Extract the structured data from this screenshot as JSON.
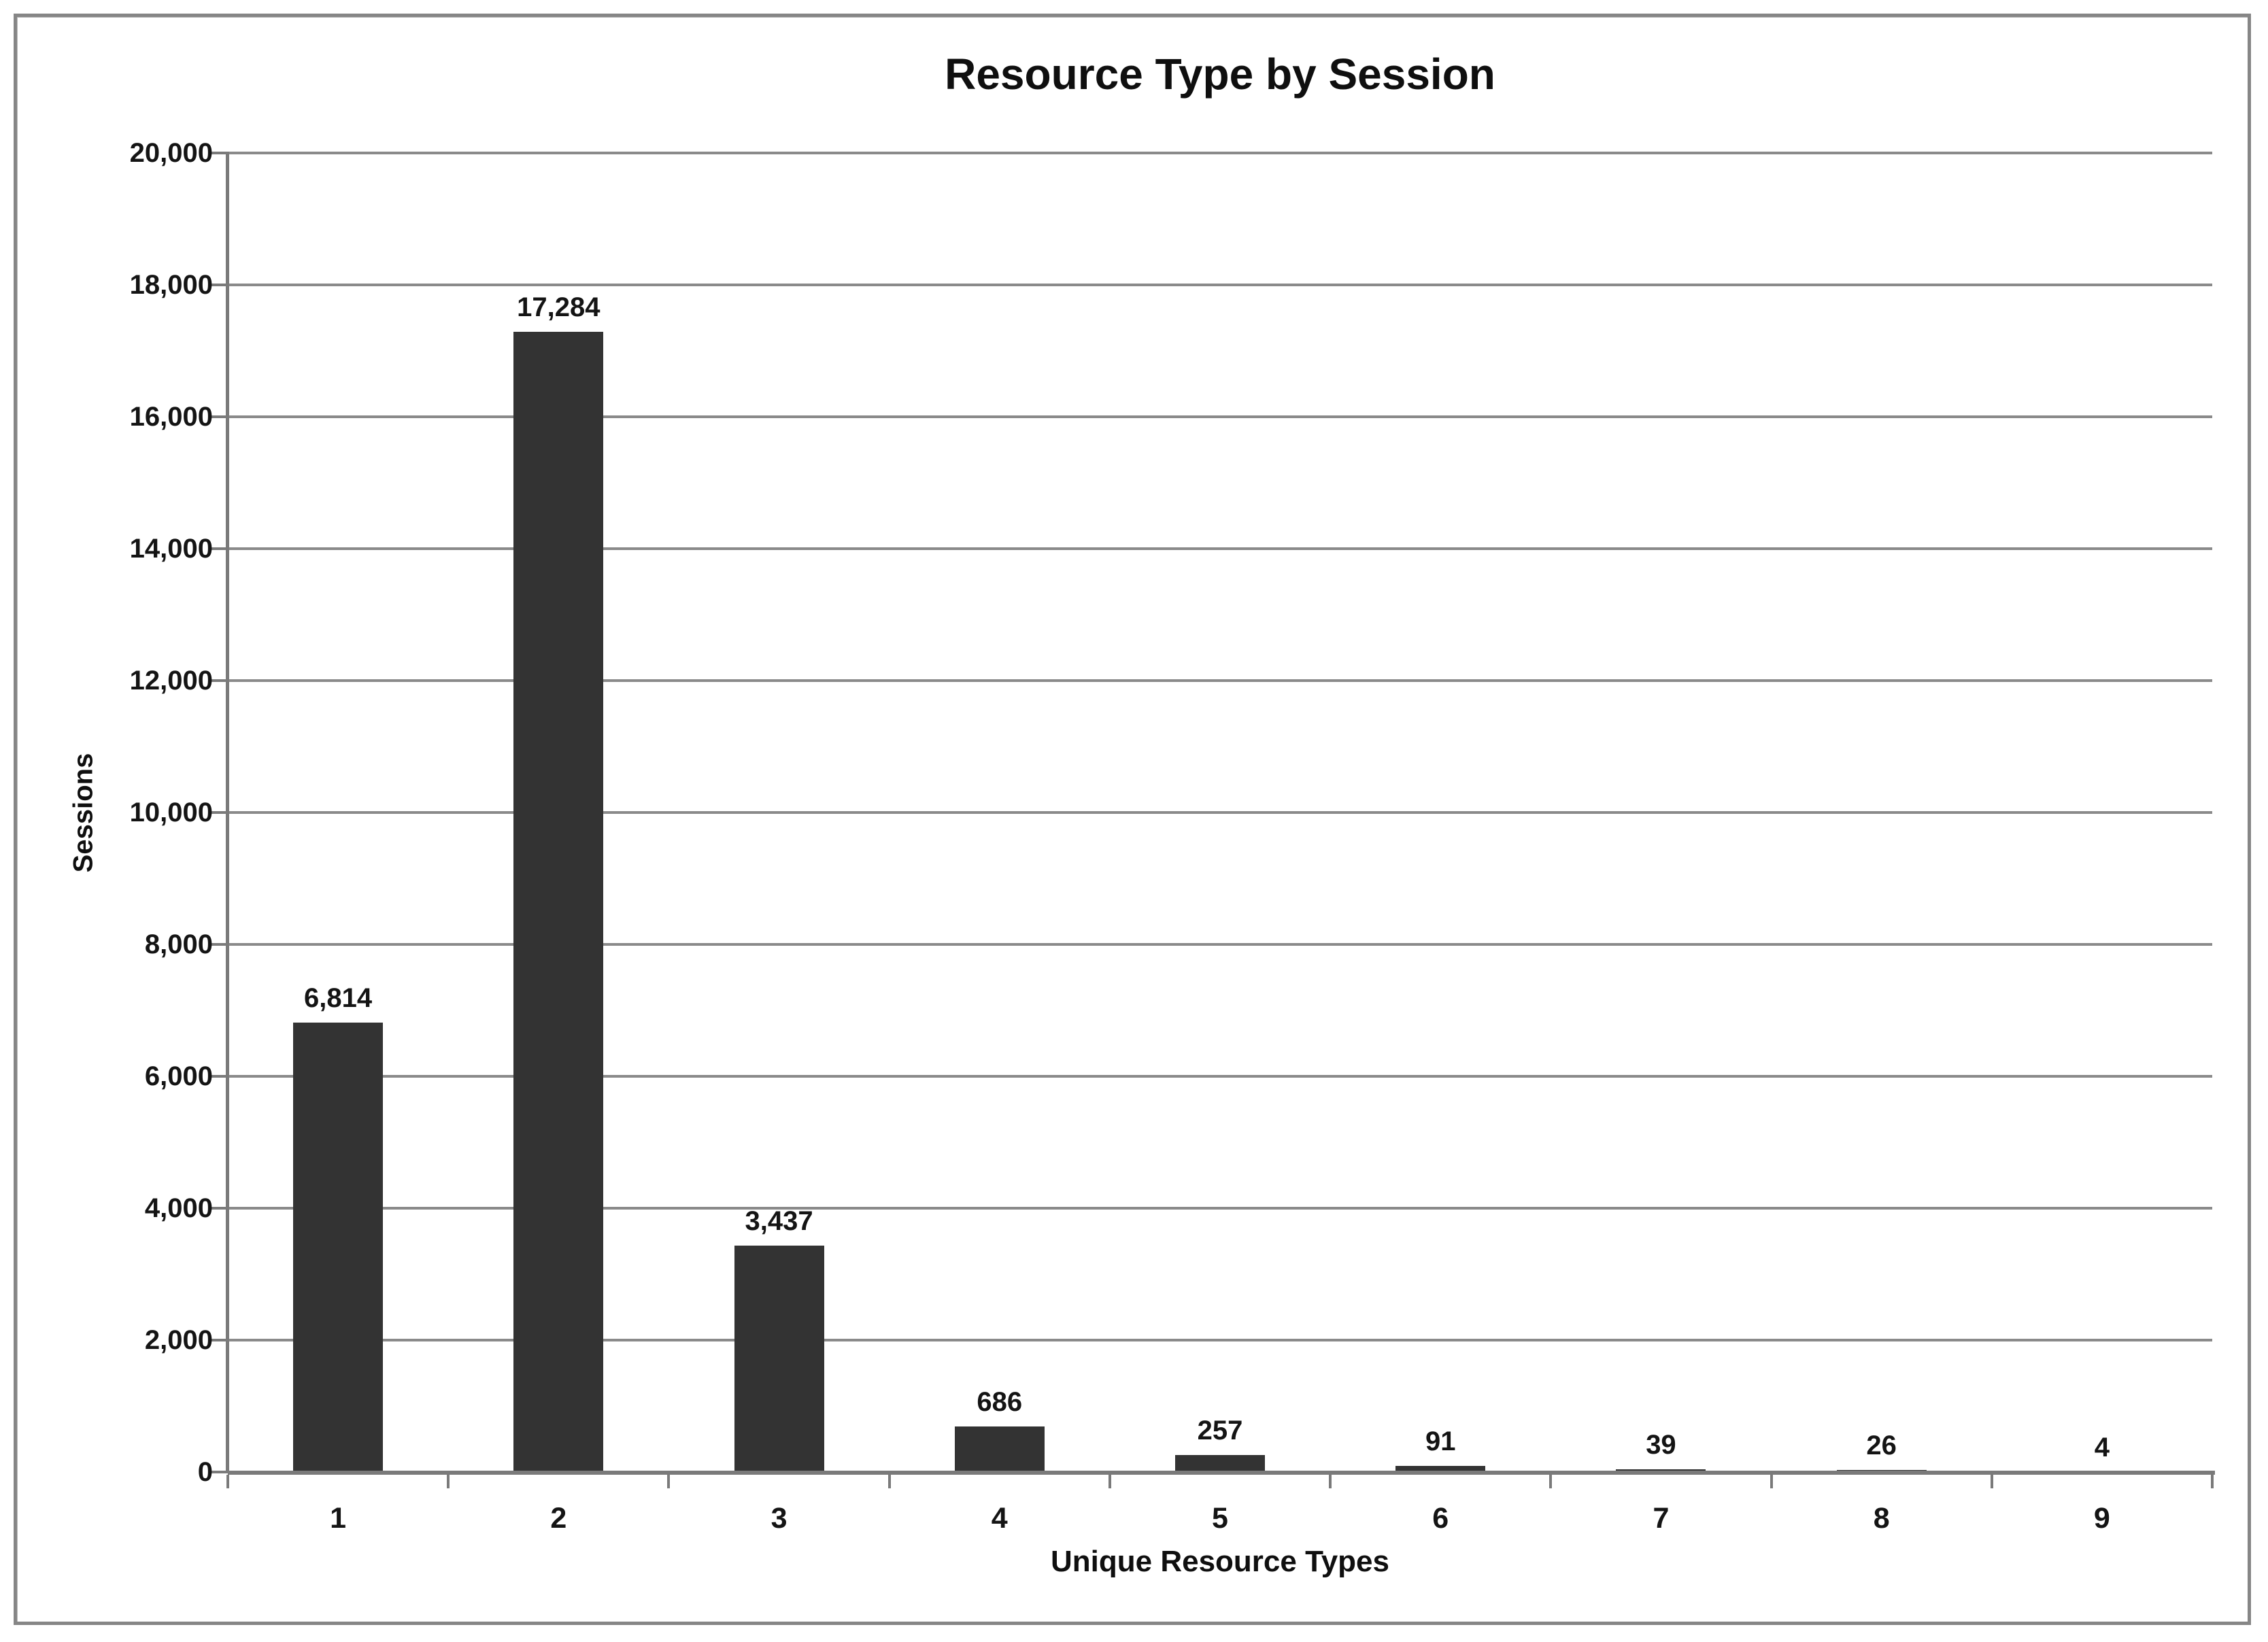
{
  "chart_data": {
    "type": "bar",
    "title": "Resource Type by Session",
    "xlabel": "Unique Resource Types",
    "ylabel": "Sessions",
    "categories": [
      "1",
      "2",
      "3",
      "4",
      "5",
      "6",
      "7",
      "8",
      "9"
    ],
    "values": [
      6814,
      17284,
      3437,
      686,
      257,
      91,
      39,
      26,
      4
    ],
    "value_labels": [
      "6,814",
      "17,284",
      "3,437",
      "686",
      "257",
      "91",
      "39",
      "26",
      "4"
    ],
    "ylim": [
      0,
      20000
    ],
    "ytick_step": 2000,
    "ytick_labels": [
      "0",
      "2,000",
      "4,000",
      "6,000",
      "8,000",
      "10,000",
      "12,000",
      "14,000",
      "16,000",
      "18,000",
      "20,000"
    ],
    "grid": true,
    "legend_position": "none",
    "colors": {
      "bar": "#333333",
      "gridline": "#8a8a8a",
      "axis": "#7a7a7a",
      "text": "#141414",
      "frame_border": "#868686",
      "background": "#ffffff"
    }
  }
}
